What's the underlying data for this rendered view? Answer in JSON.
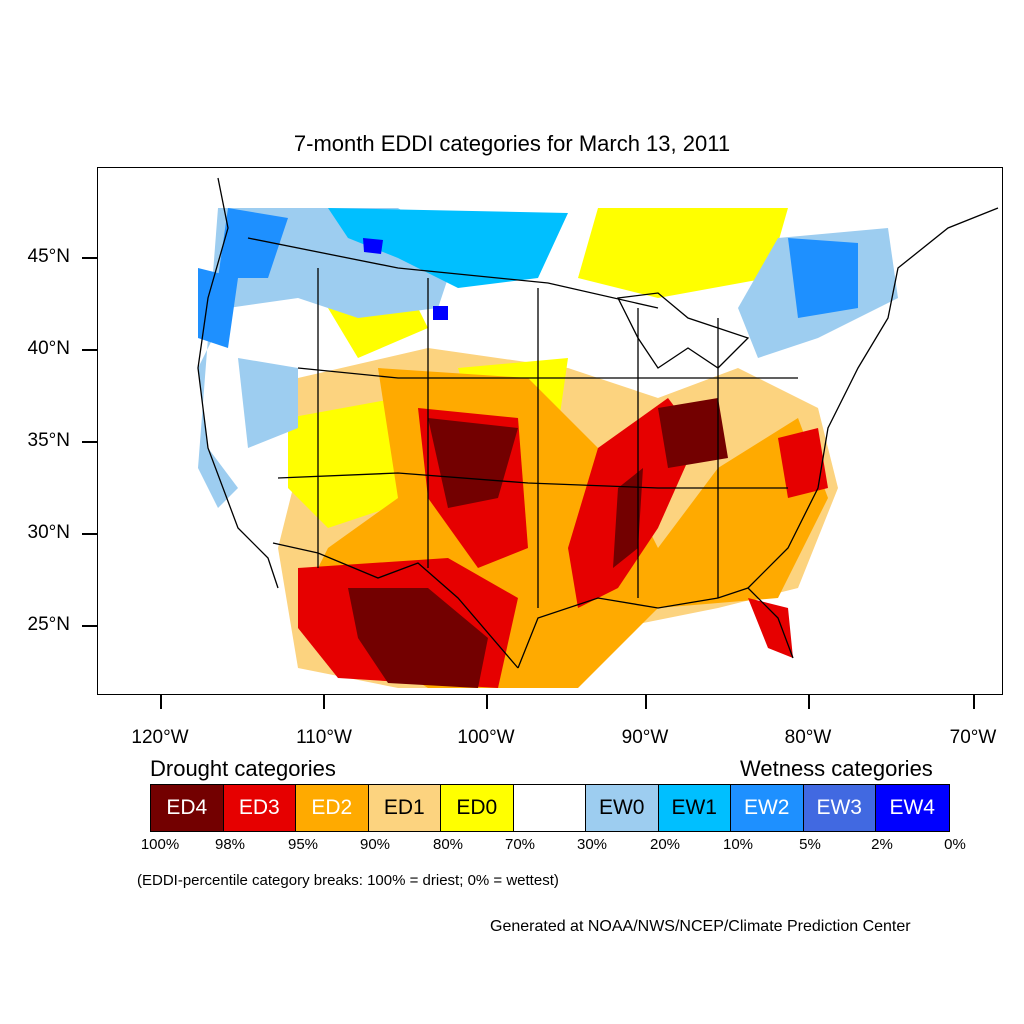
{
  "map": {
    "title": "7-month EDDI categories for March 13, 2011",
    "latitude_labels": [
      "45°N",
      "40°N",
      "35°N",
      "30°N",
      "25°N"
    ],
    "longitude_labels": [
      "120°W",
      "110°W",
      "100°W",
      "90°W",
      "80°W",
      "70°W"
    ],
    "colors": {
      "ED4": "#730000",
      "ED3": "#e60000",
      "ED2": "#ffaa00",
      "ED1": "#fcd37f",
      "ED0": "#ffff00",
      "neutral": "#ffffff",
      "EW0": "#9dcdf0",
      "EW1": "#00bfff",
      "EW2": "#1e90ff",
      "EW3": "#4169e1",
      "EW4": "#0000ff",
      "boundary": "#000000"
    }
  },
  "legend": {
    "drought_heading": "Drought categories",
    "wetness_heading": "Wetness categories",
    "categories": [
      {
        "label": "ED4",
        "color": "#730000",
        "text_color": "#ffffff"
      },
      {
        "label": "ED3",
        "color": "#e60000",
        "text_color": "#ffffff"
      },
      {
        "label": "ED2",
        "color": "#ffaa00",
        "text_color": "#ffffff"
      },
      {
        "label": "ED1",
        "color": "#fcd37f",
        "text_color": "#000000"
      },
      {
        "label": "ED0",
        "color": "#ffff00",
        "text_color": "#000000"
      },
      {
        "label": "",
        "color": "#ffffff",
        "text_color": "#000000"
      },
      {
        "label": "EW0",
        "color": "#9dcdf0",
        "text_color": "#000000"
      },
      {
        "label": "EW1",
        "color": "#00bfff",
        "text_color": "#000000"
      },
      {
        "label": "EW2",
        "color": "#1e90ff",
        "text_color": "#ffffff"
      },
      {
        "label": "EW3",
        "color": "#4169e1",
        "text_color": "#ffffff"
      },
      {
        "label": "EW4",
        "color": "#0000ff",
        "text_color": "#ffffff"
      }
    ],
    "percentiles": [
      "100%",
      "98%",
      "95%",
      "90%",
      "80%",
      "70%",
      "30%",
      "20%",
      "10%",
      "5%",
      "2%",
      "0%"
    ],
    "note": "(EDDI-percentile category breaks: 100% = driest; 0% = wettest)"
  },
  "credit": "Generated at NOAA/NWS/NCEP/Climate Prediction Center"
}
